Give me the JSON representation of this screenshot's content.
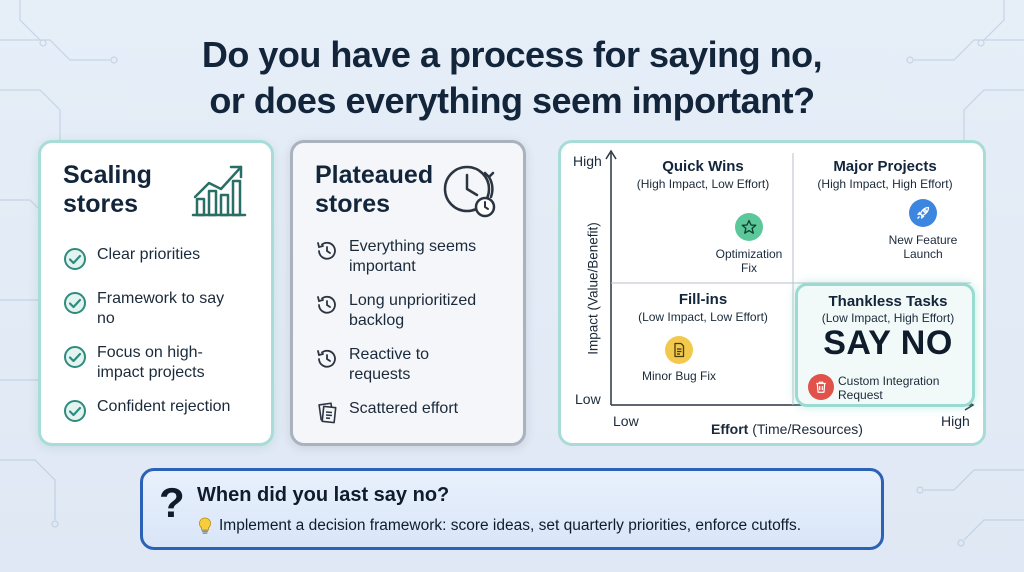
{
  "title": {
    "line1": "Do you have a process for saying no,",
    "line2": "or does everything seem important?"
  },
  "scaling": {
    "heading_line1": "Scaling",
    "heading_line2": "stores",
    "hero_icon": "trending-chart-icon",
    "check_color": "#2e8b7f",
    "items": [
      "Clear priorities",
      "Framework to say no",
      "Focus on high-impact projects",
      "Confident rejection"
    ]
  },
  "plateau": {
    "heading_line1": "Plateaued",
    "heading_line2": "stores",
    "hero_icon": "clock-history-icon",
    "items": [
      "Everything seems important",
      "Long unprioritized backlog",
      "Reactive to requests",
      "Scattered effort"
    ]
  },
  "matrix": {
    "y_axis_label": "Impact (Value/Benefit)",
    "y_high": "High",
    "y_low": "Low",
    "x_axis_label_bold": "Effort",
    "x_axis_label_rest": "(Time/Resources)",
    "x_low": "Low",
    "x_high": "High",
    "quadrants": {
      "quick_wins": {
        "title": "Quick Wins",
        "subtitle": "(High Impact, Low Effort)",
        "item_line1": "Optimization",
        "item_line2": "Fix",
        "icon": "star-icon",
        "icon_color": "#5cc79a"
      },
      "major_projects": {
        "title": "Major Projects",
        "subtitle": "(High Impact, High Effort)",
        "item_line1": "New Feature",
        "item_line2": "Launch",
        "icon": "rocket-icon",
        "icon_color": "#3d86e0"
      },
      "fill_ins": {
        "title": "Fill-ins",
        "subtitle": "(Low Impact, Low Effort)",
        "item_line1": "Minor Bug Fix",
        "icon": "document-icon",
        "icon_color": "#f2c94c"
      },
      "thankless": {
        "title": "Thankless Tasks",
        "subtitle": "(Low Impact, High Effort)",
        "callout": "SAY NO",
        "item_line1": "Custom Integration",
        "item_line2": "Request",
        "icon": "trash-icon",
        "icon_color": "#e0524a"
      }
    }
  },
  "bottom": {
    "symbol": "?",
    "heading": "When did you last say no?",
    "icon": "lightbulb-icon",
    "text": "Implement a decision framework: score ideas, set quarterly priorities, enforce cutoffs."
  }
}
